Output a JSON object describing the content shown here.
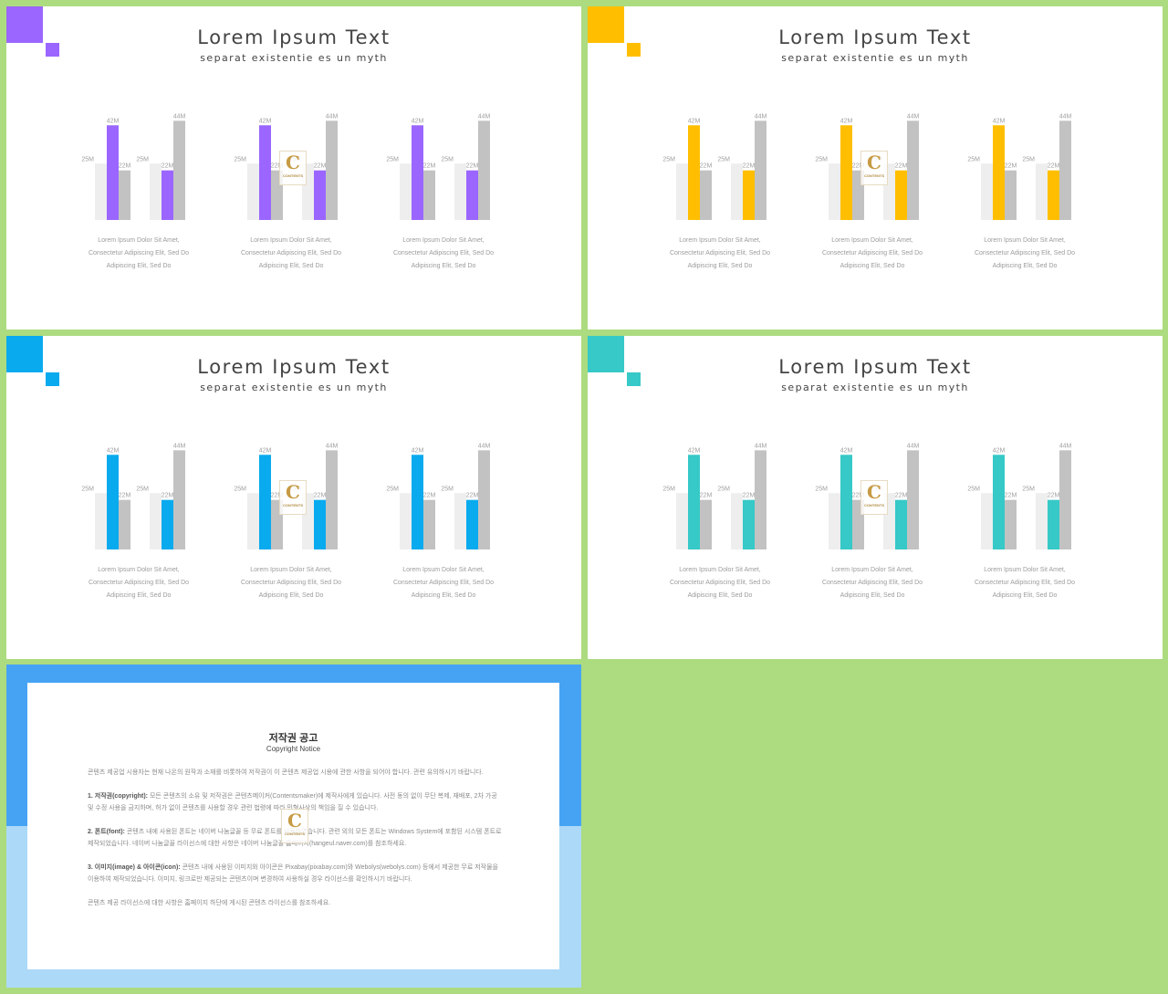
{
  "slides": [
    {
      "color": "#9b66ff",
      "title": "Lorem Ipsum Text",
      "subtitle": "separat existentie es un myth",
      "captions": [
        "Lorem Ipsum Dolor Sit Amet,",
        "Consectetur Adipiscing Elit, Sed Do",
        "Adipiscing Elit, Sed Do"
      ]
    },
    {
      "color": "#ffbf00",
      "title": "Lorem Ipsum Text",
      "subtitle": "separat existentie es un myth",
      "captions": [
        "Lorem Ipsum Dolor Sit Amet,",
        "Consectetur Adipiscing Elit, Sed Do",
        "Adipiscing Elit, Sed Do"
      ]
    },
    {
      "color": "#0aaaee",
      "title": "Lorem Ipsum Text",
      "subtitle": "separat existentie es un myth",
      "captions": [
        "Lorem Ipsum Dolor Sit Amet,",
        "Consectetur Adipiscing Elit, Sed Do",
        "Adipiscing Elit, Sed Do"
      ]
    },
    {
      "color": "#36c9c7",
      "title": "Lorem Ipsum Text",
      "subtitle": "separat existentie es un myth",
      "captions": [
        "Lorem Ipsum Dolor Sit Amet,",
        "Consectetur Adipiscing Elit, Sed Do",
        "Adipiscing Elit, Sed Do"
      ]
    }
  ],
  "colors": {
    "light_bar": "#eeeeee",
    "gray_bar": "#c2c2c2",
    "background": "#acdb80"
  },
  "chart_data": {
    "type": "bar",
    "description_groups": 3,
    "series": [
      {
        "values": [
          25,
          42,
          22
        ]
      },
      {
        "values": [
          25,
          22,
          44
        ]
      }
    ],
    "value_suffix": "M",
    "ylim": [
      0,
      44
    ]
  },
  "watermark": {
    "letter": "C",
    "text": "CONTENTS"
  },
  "copyright": {
    "title": "저작권 공고",
    "subtitle": "Copyright Notice",
    "paragraphs": [
      {
        "lead": "",
        "text": "콘텐츠 제공업 시용자는 현재 나온의 원작과 소재를 비롯하여 저작권이 이 콘텐츠 제공업 시용에 관한 사항을 되어야 합니다. 관련 유의하시기 바랍니다."
      },
      {
        "lead": "1. 저작권(copyright):",
        "text": "모든 콘텐츠의 소유 및 저작권은 콘텐츠메이커(Contentsmaker)에 제작사에게 있습니다. 사전 동의 없이 무단 복제, 재배포, 2차 가공 및 수정 사용을 금지하며, 허가 없이 콘텐츠를 사용할 경우 관련 법령에 따라 민형사상의 책임을 질 수 있습니다."
      },
      {
        "lead": "2. 폰트(font):",
        "text": "콘텐츠 내에 사용된 폰트는 네이버 나눔글꼴 등 무료 폰트를 사용하였습니다. 관련 외의 모든 폰트는 Windows System에 포함된 시스템 폰트로 제작되었습니다. 네이버 나눔글꼴 라이선스에 대한 사항은 네이버 나눔글꼴 홈페이지(hangeul.naver.com)를 참조하세요."
      },
      {
        "lead": "3. 이미지(image) & 아이콘(icon):",
        "text": "콘텐츠 내에 사용된 이미지와 아이콘은 Pixabay(pixabay.com)와 Webolys(webolys.com) 등에서 제공한 무료 저작물을 이용하여 제작되었습니다. 이미지, 링크로만 제공되는 콘텐츠이며 변경하여 사용하실 경우 라이선스를 확인하시기 바랍니다."
      },
      {
        "lead": "",
        "text": "콘텐츠 제공 라이선스에 대한 사항은 홈페이지 하단에 게시된 콘텐츠 라이선스를 참조하세요."
      }
    ]
  }
}
